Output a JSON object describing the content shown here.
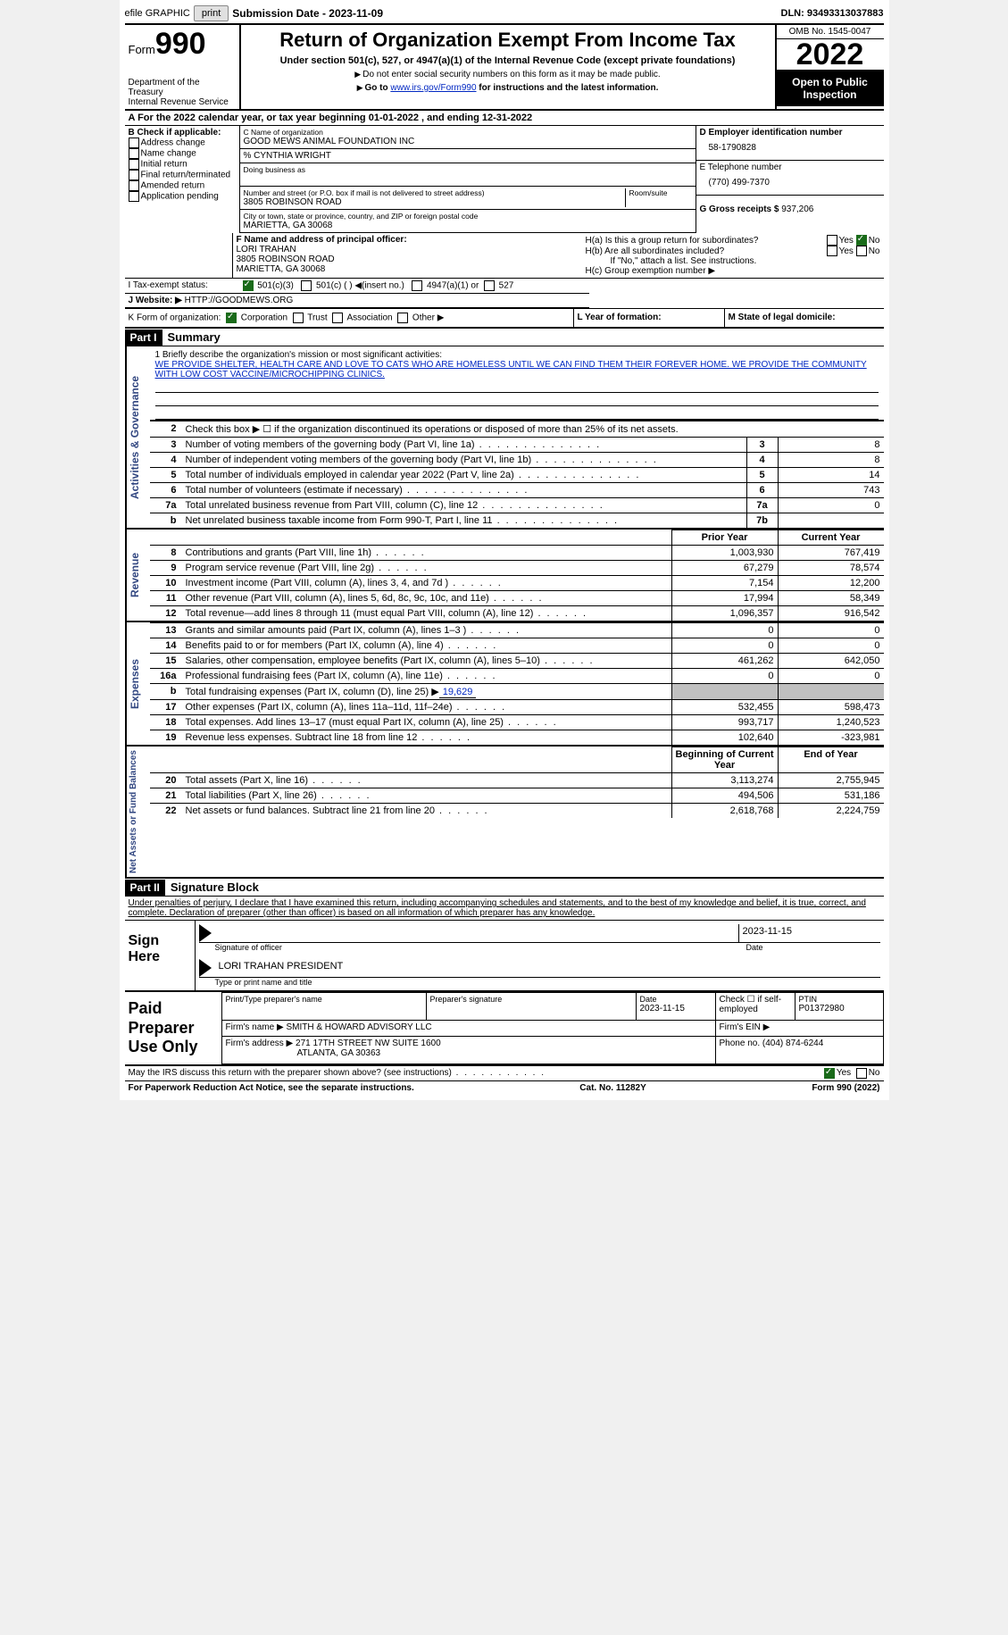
{
  "topbar": {
    "efile": "efile GRAPHIC",
    "print": "print",
    "sub_label": "Submission Date - 2023-11-09",
    "dln": "DLN: 93493313037883"
  },
  "header": {
    "form_prefix": "Form",
    "form_num": "990",
    "dept": "Department of the Treasury\nInternal Revenue Service",
    "title": "Return of Organization Exempt From Income Tax",
    "sub1": "Under section 501(c), 527, or 4947(a)(1) of the Internal Revenue Code (except private foundations)",
    "sub2": "Do not enter social security numbers on this form as it may be made public.",
    "sub3_pre": "Go to ",
    "sub3_link": "www.irs.gov/Form990",
    "sub3_post": " for instructions and the latest information.",
    "omb": "OMB No. 1545-0047",
    "year": "2022",
    "open": "Open to Public Inspection"
  },
  "row_a": {
    "text_a": "A For the 2022 calendar year, or tax year beginning ",
    "begin": "01-01-2022",
    "text_b": " , and ending ",
    "end": "12-31-2022"
  },
  "b": {
    "label": "B Check if applicable:",
    "opts": [
      "Address change",
      "Name change",
      "Initial return",
      "Final return/terminated",
      "Amended return",
      "Application pending"
    ]
  },
  "c": {
    "name_lbl": "C Name of organization",
    "name": "GOOD MEWS ANIMAL FOUNDATION INC",
    "care": "% CYNTHIA WRIGHT",
    "dba": "Doing business as",
    "addr_lbl": "Number and street (or P.O. box if mail is not delivered to street address)",
    "addr": "3805 ROBINSON ROAD",
    "room_lbl": "Room/suite",
    "city_lbl": "City or town, state or province, country, and ZIP or foreign postal code",
    "city": "MARIETTA, GA  30068"
  },
  "d": {
    "lbl": "D Employer identification number",
    "val": "58-1790828"
  },
  "e": {
    "lbl": "E Telephone number",
    "val": "(770) 499-7370"
  },
  "g": {
    "lbl": "G Gross receipts $",
    "val": "937,206"
  },
  "f": {
    "lbl": "F Name and address of principal officer:",
    "name": "LORI TRAHAN",
    "addr1": "3805 ROBINSON ROAD",
    "addr2": "MARIETTA, GA  30068"
  },
  "h": {
    "a": "H(a)  Is this a group return for subordinates?",
    "b": "H(b)  Are all subordinates included?",
    "b_note": "If \"No,\" attach a list. See instructions.",
    "c": "H(c)  Group exemption number ▶",
    "yes": "Yes",
    "no": "No"
  },
  "i": {
    "lbl": "I   Tax-exempt status:",
    "o1": "501(c)(3)",
    "o2": "501(c) (   ) ◀(insert no.)",
    "o3": "4947(a)(1) or",
    "o4": "527"
  },
  "j": {
    "lbl": "J   Website: ▶",
    "val": "HTTP://GOODMEWS.ORG"
  },
  "k": {
    "lbl": "K Form of organization:",
    "opts": [
      "Corporation",
      "Trust",
      "Association",
      "Other ▶"
    ],
    "checked": 0
  },
  "l": {
    "lbl": "L Year of formation:",
    "val": ""
  },
  "m": {
    "lbl": "M State of legal domicile:",
    "val": ""
  },
  "part1": {
    "label": "Part I",
    "title": "Summary"
  },
  "mission": {
    "prompt": "1   Briefly describe the organization's mission or most significant activities:",
    "text": "WE PROVIDE SHELTER, HEALTH CARE AND LOVE TO CATS WHO ARE HOMELESS UNTIL WE CAN FIND THEM THEIR FOREVER HOME. WE PROVIDE THE COMMUNITY WITH LOW COST VACCINE/MICROCHIPPING CLINICS."
  },
  "line2": "Check this box ▶ ☐  if the organization discontinued its operations or disposed of more than 25% of its net assets.",
  "side_labels": {
    "gov": "Activities & Governance",
    "rev": "Revenue",
    "exp": "Expenses",
    "net": "Net Assets or Fund Balances"
  },
  "gov_rows": [
    {
      "n": "3",
      "d": "Number of voting members of the governing body (Part VI, line 1a)",
      "lab": "3",
      "v": "8"
    },
    {
      "n": "4",
      "d": "Number of independent voting members of the governing body (Part VI, line 1b)",
      "lab": "4",
      "v": "8"
    },
    {
      "n": "5",
      "d": "Total number of individuals employed in calendar year 2022 (Part V, line 2a)",
      "lab": "5",
      "v": "14"
    },
    {
      "n": "6",
      "d": "Total number of volunteers (estimate if necessary)",
      "lab": "6",
      "v": "743"
    },
    {
      "n": "7a",
      "d": "Total unrelated business revenue from Part VIII, column (C), line 12",
      "lab": "7a",
      "v": "0"
    },
    {
      "n": "b",
      "d": "Net unrelated business taxable income from Form 990-T, Part I, line 11",
      "lab": "7b",
      "v": ""
    }
  ],
  "col_hdr": {
    "prior": "Prior Year",
    "curr": "Current Year"
  },
  "rev_rows": [
    {
      "n": "8",
      "d": "Contributions and grants (Part VIII, line 1h)",
      "p": "1,003,930",
      "c": "767,419"
    },
    {
      "n": "9",
      "d": "Program service revenue (Part VIII, line 2g)",
      "p": "67,279",
      "c": "78,574"
    },
    {
      "n": "10",
      "d": "Investment income (Part VIII, column (A), lines 3, 4, and 7d )",
      "p": "7,154",
      "c": "12,200"
    },
    {
      "n": "11",
      "d": "Other revenue (Part VIII, column (A), lines 5, 6d, 8c, 9c, 10c, and 11e)",
      "p": "17,994",
      "c": "58,349"
    },
    {
      "n": "12",
      "d": "Total revenue—add lines 8 through 11 (must equal Part VIII, column (A), line 12)",
      "p": "1,096,357",
      "c": "916,542"
    }
  ],
  "exp_rows": [
    {
      "n": "13",
      "d": "Grants and similar amounts paid (Part IX, column (A), lines 1–3 )",
      "p": "0",
      "c": "0"
    },
    {
      "n": "14",
      "d": "Benefits paid to or for members (Part IX, column (A), line 4)",
      "p": "0",
      "c": "0"
    },
    {
      "n": "15",
      "d": "Salaries, other compensation, employee benefits (Part IX, column (A), lines 5–10)",
      "p": "461,262",
      "c": "642,050"
    },
    {
      "n": "16a",
      "d": "Professional fundraising fees (Part IX, column (A), line 11e)",
      "p": "0",
      "c": "0"
    }
  ],
  "line16b": {
    "n": "b",
    "d": "Total fundraising expenses (Part IX, column (D), line 25) ▶",
    "v": "19,629"
  },
  "exp_rows2": [
    {
      "n": "17",
      "d": "Other expenses (Part IX, column (A), lines 11a–11d, 11f–24e)",
      "p": "532,455",
      "c": "598,473"
    },
    {
      "n": "18",
      "d": "Total expenses. Add lines 13–17 (must equal Part IX, column (A), line 25)",
      "p": "993,717",
      "c": "1,240,523"
    },
    {
      "n": "19",
      "d": "Revenue less expenses. Subtract line 18 from line 12",
      "p": "102,640",
      "c": "-323,981"
    }
  ],
  "net_hdr": {
    "b": "Beginning of Current Year",
    "e": "End of Year"
  },
  "net_rows": [
    {
      "n": "20",
      "d": "Total assets (Part X, line 16)",
      "p": "3,113,274",
      "c": "2,755,945"
    },
    {
      "n": "21",
      "d": "Total liabilities (Part X, line 26)",
      "p": "494,506",
      "c": "531,186"
    },
    {
      "n": "22",
      "d": "Net assets or fund balances. Subtract line 21 from line 20",
      "p": "2,618,768",
      "c": "2,224,759"
    }
  ],
  "part2": {
    "label": "Part II",
    "title": "Signature Block"
  },
  "penalty": "Under penalties of perjury, I declare that I have examined this return, including accompanying schedules and statements, and to the best of my knowledge and belief, it is true, correct, and complete. Declaration of preparer (other than officer) is based on all information of which preparer has any knowledge.",
  "sign": {
    "here": "Sign Here",
    "date": "2023-11-15",
    "sig_lbl": "Signature of officer",
    "date_lbl": "Date",
    "name": "LORI TRAHAN  PRESIDENT",
    "name_lbl": "Type or print name and title"
  },
  "prep": {
    "here": "Paid Preparer Use Only",
    "r1": {
      "a": "Print/Type preparer's name",
      "b": "Preparer's signature",
      "c": "Date",
      "c_v": "2023-11-15",
      "d": "Check ☐ if self-employed",
      "e": "PTIN",
      "e_v": "P01372980"
    },
    "r2": {
      "a": "Firm's name    ▶",
      "a_v": "SMITH & HOWARD ADVISORY LLC",
      "b": "Firm's EIN ▶"
    },
    "r3": {
      "a": "Firm's address ▶",
      "a_v1": "271 17TH STREET NW SUITE 1600",
      "a_v2": "ATLANTA, GA  30363",
      "b": "Phone no.",
      "b_v": "(404) 874-6244"
    }
  },
  "discuss": {
    "q": "May the IRS discuss this return with the preparer shown above? (see instructions)",
    "yes": "Yes",
    "no": "No"
  },
  "footer": {
    "pra": "For Paperwork Reduction Act Notice, see the separate instructions.",
    "cat": "Cat. No. 11282Y",
    "form": "Form 990 (2022)"
  }
}
